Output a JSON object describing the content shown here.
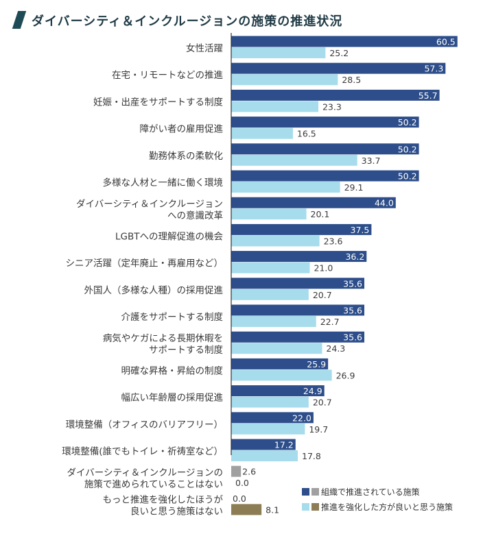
{
  "title": "ダイバーシティ＆インクルージョンの施策の推進状況",
  "colors": {
    "series1": "#2d4e8a",
    "series2": "#a6dceb",
    "special1": "#a0a0a0",
    "special2": "#8c7d55",
    "axis": "#333333"
  },
  "legend": [
    {
      "label": "組織で推進されている施策",
      "colors": [
        "#2d4e8a",
        "#a0a0a0"
      ]
    },
    {
      "label": "推進を強化した方が良いと思う施策",
      "colors": [
        "#a6dceb",
        "#8c7d55"
      ]
    }
  ],
  "chart_data": {
    "type": "bar",
    "orientation": "horizontal",
    "title": "ダイバーシティ＆インクルージョンの施策の推進状況",
    "xlim": [
      0,
      70
    ],
    "categories": [
      [
        "女性活躍"
      ],
      [
        "在宅・リモートなどの推進"
      ],
      [
        "妊娠・出産をサポートする制度"
      ],
      [
        "障がい者の雇用促進"
      ],
      [
        "勤務体系の柔軟化"
      ],
      [
        "多様な人材と一緒に働く環境"
      ],
      [
        "ダイバーシティ＆インクルージョン",
        "への意識改革"
      ],
      [
        "LGBTへの理解促進の機会"
      ],
      [
        "シニア活躍（定年廃止・再雇用など）"
      ],
      [
        "外国人（多様な人種）の採用促進"
      ],
      [
        "介護をサポートする制度"
      ],
      [
        "病気やケガによる長期休暇を",
        "サポートする制度"
      ],
      [
        "明確な昇格・昇給の制度"
      ],
      [
        "幅広い年齢層の採用促進"
      ],
      [
        "環境整備（オフィスのバリアフリー）"
      ],
      [
        "環境整備(誰でもトイレ・祈祷室など）"
      ],
      [
        "ダイバーシティ＆インクルージョンの",
        "施策で進められていることはない"
      ],
      [
        "もっと推進を強化したほうが",
        "良いと思う施策はない"
      ]
    ],
    "series": [
      {
        "name": "組織で推進されている施策",
        "values": [
          60.5,
          57.3,
          55.7,
          50.2,
          50.2,
          50.2,
          44.0,
          37.5,
          36.2,
          35.6,
          35.6,
          35.6,
          25.9,
          24.9,
          22.0,
          17.2,
          2.6,
          0.0
        ],
        "labels": [
          "60.5",
          "57.3",
          "55.7",
          "50.2",
          "50.2",
          "50.2",
          "44.0",
          "37.5",
          "36.2",
          "35.6",
          "35.6",
          "35.6",
          "25.9",
          "24.9",
          "22.0",
          "17.2",
          "2.6",
          "0.0"
        ]
      },
      {
        "name": "推進を強化した方が良いと思う施策",
        "values": [
          25.2,
          28.5,
          23.3,
          16.5,
          33.7,
          29.1,
          20.1,
          23.6,
          21.0,
          20.7,
          22.7,
          24.3,
          26.9,
          20.7,
          19.7,
          17.8,
          0.0,
          8.1
        ],
        "labels": [
          "25.2",
          "28.5",
          "23.3",
          "16.5",
          "33.7",
          "29.1",
          "20.1",
          "23.6",
          "21.0",
          "20.7",
          "22.7",
          "24.3",
          "26.9",
          "20.7",
          "19.7",
          "17.8",
          "0.0",
          "8.1"
        ]
      }
    ],
    "special_rows": [
      16,
      17
    ],
    "grid": false,
    "legend_position": "bottom-right"
  }
}
